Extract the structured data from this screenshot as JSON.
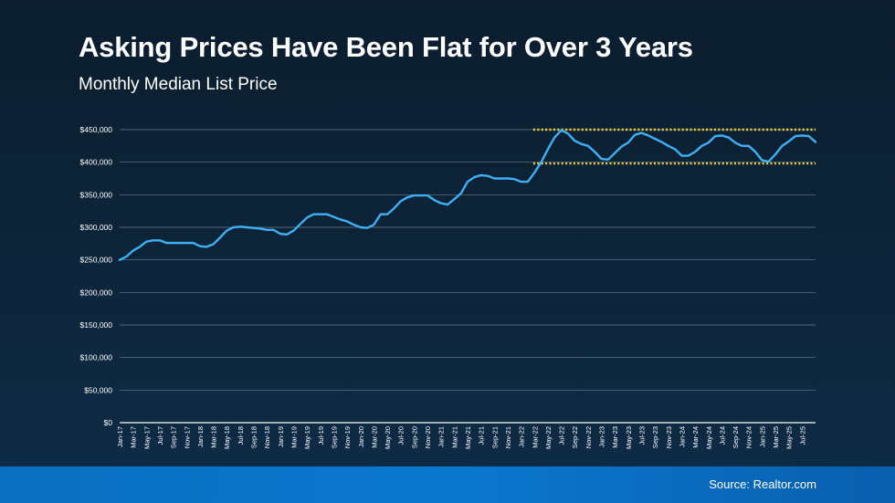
{
  "header": {
    "title": "Asking Prices Have Been Flat for Over 3 Years",
    "subtitle": "Monthly Median List Price"
  },
  "footer": {
    "source": "Source: Realtor.com"
  },
  "colors": {
    "line": "#3fb0f5",
    "band": "#f2d23a",
    "grid": "#8a9aab",
    "axis": "#ffffff",
    "footer": "#0b78cf"
  },
  "chart_data": {
    "type": "line",
    "grid": true,
    "ylim": [
      0,
      450000
    ],
    "y_ticks": [
      {
        "value": 0,
        "label": "$0"
      },
      {
        "value": 50000,
        "label": "$50,000"
      },
      {
        "value": 100000,
        "label": "$100,000"
      },
      {
        "value": 150000,
        "label": "$150,000"
      },
      {
        "value": 200000,
        "label": "$200,000"
      },
      {
        "value": 250000,
        "label": "$250,000"
      },
      {
        "value": 300000,
        "label": "$300,000"
      },
      {
        "value": 350000,
        "label": "$350,000"
      },
      {
        "value": 400000,
        "label": "$400,000"
      },
      {
        "value": 450000,
        "label": "$450,000"
      }
    ],
    "x_tick_labels": [
      "Jan-17",
      "Mar-17",
      "May-17",
      "Jul-17",
      "Sep-17",
      "Nov-17",
      "Jan-18",
      "Mar-18",
      "May-18",
      "Jul-18",
      "Sep-18",
      "Nov-18",
      "Jan-19",
      "Mar-19",
      "May-19",
      "Jul-19",
      "Sep-19",
      "Nov-19",
      "Jan-20",
      "Mar-20",
      "May-20",
      "Jul-20",
      "Sep-20",
      "Nov-20",
      "Jan-21",
      "Mar-21",
      "May-21",
      "Jul-21",
      "Sep-21",
      "Nov-21",
      "Jan-22",
      "Mar-22",
      "May-22",
      "Jul-22",
      "Sep-22",
      "Nov-22",
      "Jan-23",
      "Mar-23",
      "May-23",
      "Jul-23",
      "Sep-23",
      "Nov-23",
      "Jan-24",
      "Mar-24",
      "May-24",
      "Jul-24",
      "Sep-24",
      "Nov-24",
      "Jan-25",
      "Mar-25",
      "May-25",
      "Jul-25"
    ],
    "reference_lines": [
      450000,
      398000
    ],
    "series": [
      {
        "values": [
          250000,
          255000,
          264000,
          270000,
          278000,
          280000,
          280000,
          276000,
          276000,
          276000,
          276000,
          276000,
          271000,
          270000,
          274000,
          284000,
          295000,
          300000,
          301000,
          300000,
          299000,
          298000,
          296000,
          296000,
          290000,
          289000,
          295000,
          305000,
          315000,
          320000,
          320000,
          320000,
          316000,
          312000,
          309000,
          304000,
          300000,
          299000,
          304000,
          320000,
          320000,
          329000,
          340000,
          346000,
          349000,
          349000,
          349000,
          342000,
          337000,
          335000,
          343000,
          352000,
          370000,
          377000,
          380000,
          379000,
          375000,
          375000,
          375000,
          374000,
          370000,
          370000,
          384000,
          400000,
          420000,
          438000,
          449000,
          444000,
          433000,
          428000,
          425000,
          416000,
          405000,
          404000,
          414000,
          424000,
          430000,
          442000,
          445000,
          441000,
          436000,
          431000,
          425000,
          420000,
          410000,
          410000,
          416000,
          425000,
          430000,
          440000,
          441000,
          438000,
          430000,
          425000,
          425000,
          416000,
          403000,
          401000,
          412000,
          425000,
          432000,
          440000,
          441000,
          440000,
          431000
        ]
      }
    ]
  }
}
